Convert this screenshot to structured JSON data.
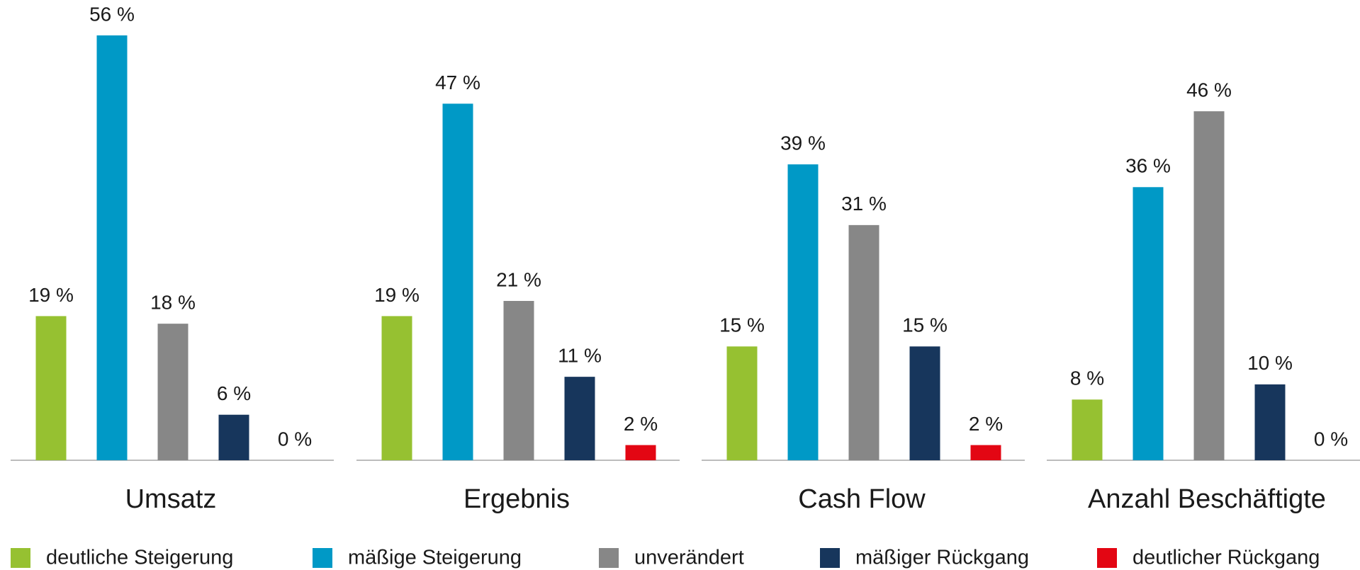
{
  "chart_data": {
    "type": "bar",
    "categories": [
      "Umsatz",
      "Ergebnis",
      "Cash Flow",
      "Anzahl Beschäftigte"
    ],
    "series": [
      {
        "name": "deutliche Steigerung",
        "color": "#96c131",
        "values": [
          19,
          19,
          15,
          8
        ],
        "value_labels": [
          "19 %",
          "19 %",
          "15 %",
          "8 %"
        ]
      },
      {
        "name": "mäßige Steigerung",
        "color": "#0099c6",
        "values": [
          56,
          47,
          39,
          36
        ],
        "value_labels": [
          "56 %",
          "47 %",
          "39 %",
          "36 %"
        ]
      },
      {
        "name": "unverändert",
        "color": "#878787",
        "values": [
          18,
          21,
          31,
          46
        ],
        "value_labels": [
          "18 %",
          "21 %",
          "31 %",
          "46 %"
        ]
      },
      {
        "name": "mäßiger Rückgang",
        "color": "#17365c",
        "values": [
          6,
          11,
          15,
          10
        ],
        "value_labels": [
          "6 %",
          "11 %",
          "15 %",
          "10 %"
        ]
      },
      {
        "name": "deutlicher Rückgang",
        "color": "#e30613",
        "values": [
          0,
          2,
          2,
          0
        ],
        "value_labels": [
          "0 %",
          "2 %",
          "2 %",
          "0 %"
        ]
      }
    ],
    "legend": "bottom"
  }
}
